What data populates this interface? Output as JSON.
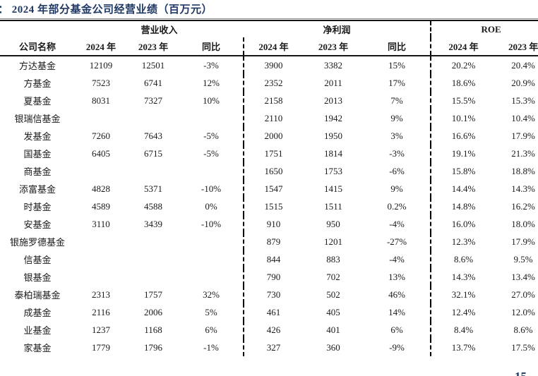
{
  "title": "： 2024 年部分基金公司经营业绩（百万元）",
  "page_number": "15",
  "colors": {
    "title_navy": "#1f3864",
    "text": "#1a1a1a",
    "rule": "#161616"
  },
  "table": {
    "first_col_header": "公司名称",
    "groups": [
      {
        "label": "营业收入",
        "cols": [
          "2024 年",
          "2023 年",
          "同比"
        ]
      },
      {
        "label": "净利润",
        "cols": [
          "2024 年",
          "2023 年",
          "同比"
        ]
      },
      {
        "label": "ROE",
        "cols": [
          "2024 年",
          "2023 年"
        ]
      }
    ],
    "rows": [
      {
        "name": "方达基金",
        "cells": [
          "12109",
          "12501",
          "-3%",
          "3900",
          "3382",
          "15%",
          "20.2%",
          "20.4%"
        ]
      },
      {
        "name": "方基金",
        "cells": [
          "7523",
          "6741",
          "12%",
          "2352",
          "2011",
          "17%",
          "18.6%",
          "20.9%"
        ]
      },
      {
        "name": "夏基金",
        "cells": [
          "8031",
          "7327",
          "10%",
          "2158",
          "2013",
          "7%",
          "15.5%",
          "15.3%"
        ]
      },
      {
        "name": "银瑞信基金",
        "cells": [
          "",
          "",
          "",
          "2110",
          "1942",
          "9%",
          "10.1%",
          "10.4%"
        ]
      },
      {
        "name": "发基金",
        "cells": [
          "7260",
          "7643",
          "-5%",
          "2000",
          "1950",
          "3%",
          "16.6%",
          "17.9%"
        ]
      },
      {
        "name": "国基金",
        "cells": [
          "6405",
          "6715",
          "-5%",
          "1751",
          "1814",
          "-3%",
          "19.1%",
          "21.3%"
        ]
      },
      {
        "name": "商基金",
        "cells": [
          "",
          "",
          "",
          "1650",
          "1753",
          "-6%",
          "15.8%",
          "18.8%"
        ]
      },
      {
        "name": "添富基金",
        "cells": [
          "4828",
          "5371",
          "-10%",
          "1547",
          "1415",
          "9%",
          "14.4%",
          "14.3%"
        ]
      },
      {
        "name": "时基金",
        "cells": [
          "4589",
          "4588",
          "0%",
          "1515",
          "1511",
          "0.2%",
          "14.8%",
          "16.2%"
        ]
      },
      {
        "name": "安基金",
        "cells": [
          "3110",
          "3439",
          "-10%",
          "910",
          "950",
          "-4%",
          "16.0%",
          "18.0%"
        ]
      },
      {
        "name": "银施罗德基金",
        "cells": [
          "",
          "",
          "",
          "879",
          "1201",
          "-27%",
          "12.3%",
          "17.9%"
        ]
      },
      {
        "name": "信基金",
        "cells": [
          "",
          "",
          "",
          "844",
          "883",
          "-4%",
          "8.6%",
          "9.5%"
        ]
      },
      {
        "name": "银基金",
        "cells": [
          "",
          "",
          "",
          "790",
          "702",
          "13%",
          "14.3%",
          "13.4%"
        ]
      },
      {
        "name": "泰柏瑞基金",
        "cells": [
          "2313",
          "1757",
          "32%",
          "730",
          "502",
          "46%",
          "32.1%",
          "27.0%"
        ]
      },
      {
        "name": "成基金",
        "cells": [
          "2116",
          "2006",
          "5%",
          "461",
          "405",
          "14%",
          "12.4%",
          "12.0%"
        ]
      },
      {
        "name": "业基金",
        "cells": [
          "1237",
          "1168",
          "6%",
          "426",
          "401",
          "6%",
          "8.4%",
          "8.6%"
        ]
      },
      {
        "name": "家基金",
        "cells": [
          "1779",
          "1796",
          "-1%",
          "327",
          "360",
          "-9%",
          "13.7%",
          "17.5%"
        ]
      }
    ]
  }
}
